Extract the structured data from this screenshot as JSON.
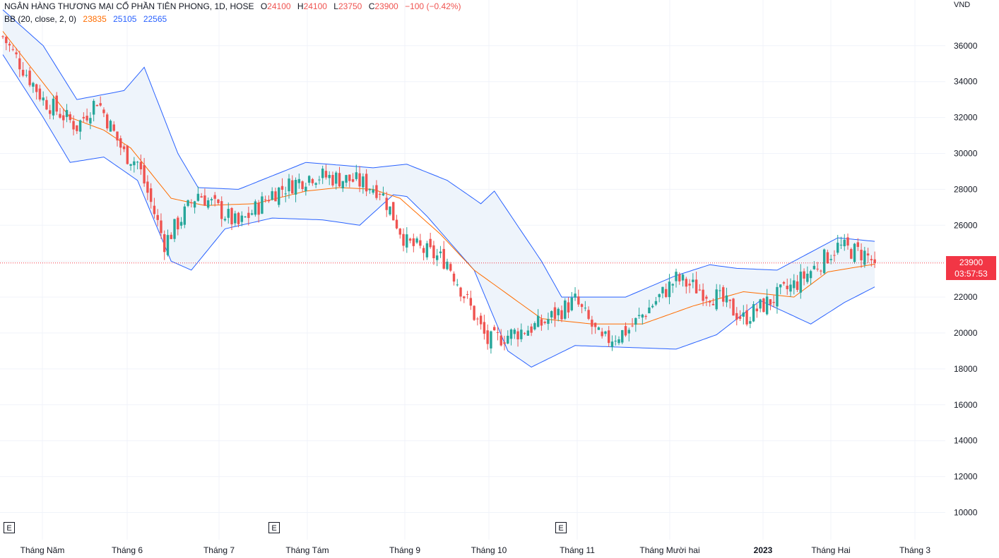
{
  "legend": {
    "title": "NGÂN HÀNG THƯƠNG MẠI CỔ PHẦN TIÊN PHONG, 1D, HOSE",
    "o_label": "O",
    "o_value": "24100",
    "h_label": "H",
    "h_value": "24100",
    "l_label": "L",
    "l_value": "23750",
    "c_label": "C",
    "c_value": "23900",
    "change": "−100 (−0.42%)",
    "indicator": "BB (20, close, 2, 0)",
    "bb_basis": "23835",
    "bb_upper": "25105",
    "bb_lower": "22565"
  },
  "price_tag": {
    "price": "23900",
    "countdown": "03:57:53"
  },
  "axis_unit": "VND",
  "earnings_marker": "E",
  "colors": {
    "up": "#26a69a",
    "down": "#ef5350",
    "basis": "#ff6d00",
    "band": "#2962ff",
    "fill": "#eef4fb"
  },
  "chart_data": {
    "type": "candlestick",
    "title": "NGÂN HÀNG THƯƠNG MẠI CỔ PHẦN TIÊN PHONG, 1D, HOSE",
    "y_unit": "VND",
    "ylim": [
      9000,
      38000
    ],
    "y_ticks": [
      10000,
      12000,
      14000,
      16000,
      18000,
      20000,
      22000,
      24000,
      26000,
      28000,
      30000,
      32000,
      34000,
      36000
    ],
    "x_ticks": [
      "Tháng Năm",
      "Tháng 6",
      "Tháng 7",
      "Tháng Tám",
      "Tháng 9",
      "Tháng 10",
      "Tháng 11",
      "Tháng Mười hai",
      "2023",
      "Tháng Hai",
      "Tháng 3"
    ],
    "grid": true,
    "last_price": 23900,
    "close_anchors": [
      [
        0,
        36500
      ],
      [
        12,
        33000
      ],
      [
        22,
        31500
      ],
      [
        28,
        33000
      ],
      [
        36,
        30000
      ],
      [
        40,
        29500
      ],
      [
        48,
        25000
      ],
      [
        58,
        27800
      ],
      [
        70,
        26000
      ],
      [
        80,
        27800
      ],
      [
        92,
        28800
      ],
      [
        104,
        28500
      ],
      [
        112,
        28000
      ],
      [
        120,
        25000
      ],
      [
        132,
        24000
      ],
      [
        144,
        19500
      ],
      [
        160,
        20500
      ],
      [
        170,
        21800
      ],
      [
        178,
        19500
      ],
      [
        186,
        20200
      ],
      [
        200,
        23000
      ],
      [
        212,
        22000
      ],
      [
        220,
        20800
      ],
      [
        236,
        22800
      ],
      [
        248,
        24800
      ],
      [
        256,
        24400
      ],
      [
        259,
        23900
      ]
    ],
    "series": [
      {
        "name": "BB basis",
        "anchors": [
          [
            0,
            36800
          ],
          [
            20,
            32000
          ],
          [
            30,
            31300
          ],
          [
            38,
            30300
          ],
          [
            50,
            27500
          ],
          [
            60,
            27100
          ],
          [
            75,
            27200
          ],
          [
            90,
            27900
          ],
          [
            100,
            28100
          ],
          [
            110,
            28000
          ],
          [
            118,
            27500
          ],
          [
            130,
            25500
          ],
          [
            140,
            23500
          ],
          [
            160,
            20800
          ],
          [
            175,
            20500
          ],
          [
            190,
            20500
          ],
          [
            205,
            21500
          ],
          [
            220,
            22300
          ],
          [
            235,
            22000
          ],
          [
            245,
            23400
          ],
          [
            259,
            23835
          ]
        ]
      },
      {
        "name": "BB upper",
        "anchors": [
          [
            0,
            38000
          ],
          [
            12,
            36000
          ],
          [
            22,
            33000
          ],
          [
            36,
            33500
          ],
          [
            42,
            34800
          ],
          [
            52,
            30000
          ],
          [
            58,
            28100
          ],
          [
            70,
            28000
          ],
          [
            90,
            29500
          ],
          [
            110,
            29200
          ],
          [
            120,
            29400
          ],
          [
            132,
            28500
          ],
          [
            142,
            27200
          ],
          [
            146,
            27900
          ],
          [
            160,
            24000
          ],
          [
            166,
            22000
          ],
          [
            185,
            22000
          ],
          [
            200,
            23200
          ],
          [
            210,
            23800
          ],
          [
            218,
            23600
          ],
          [
            230,
            23500
          ],
          [
            240,
            24500
          ],
          [
            248,
            25300
          ],
          [
            259,
            25105
          ]
        ]
      },
      {
        "name": "BB lower",
        "anchors": [
          [
            0,
            35500
          ],
          [
            12,
            32000
          ],
          [
            20,
            29500
          ],
          [
            30,
            29800
          ],
          [
            40,
            28500
          ],
          [
            50,
            24000
          ],
          [
            56,
            23500
          ],
          [
            66,
            25800
          ],
          [
            80,
            26400
          ],
          [
            95,
            26300
          ],
          [
            106,
            26000
          ],
          [
            116,
            27700
          ],
          [
            120,
            27600
          ],
          [
            126,
            26500
          ],
          [
            140,
            23500
          ],
          [
            150,
            19000
          ],
          [
            157,
            18100
          ],
          [
            170,
            19300
          ],
          [
            200,
            19100
          ],
          [
            212,
            19900
          ],
          [
            225,
            21800
          ],
          [
            240,
            20500
          ],
          [
            250,
            21700
          ],
          [
            259,
            22565
          ]
        ]
      }
    ]
  }
}
